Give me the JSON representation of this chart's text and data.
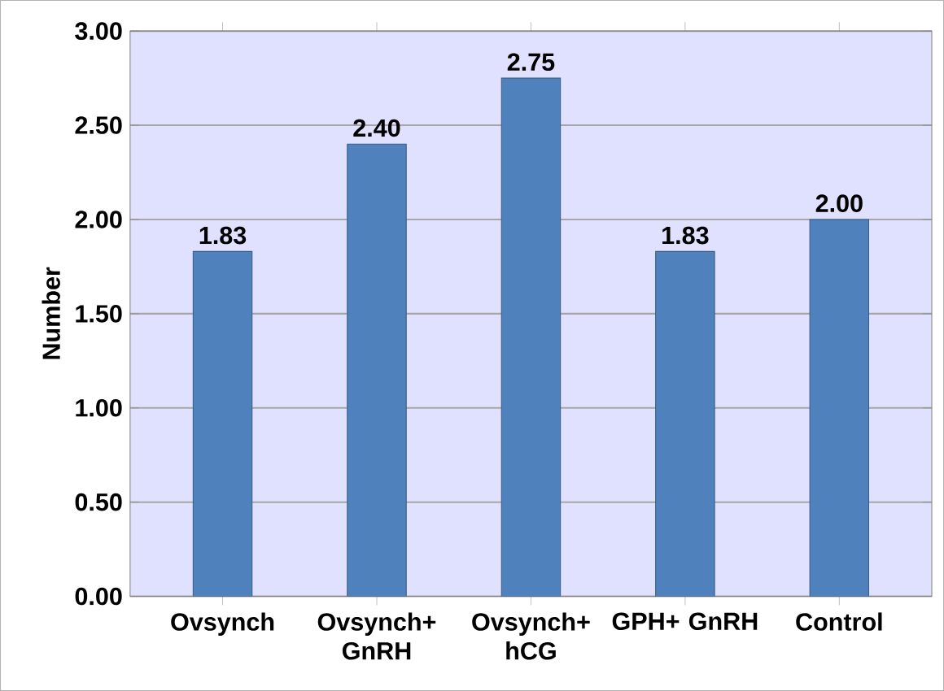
{
  "chart_data": {
    "type": "bar",
    "ylabel": "Number",
    "categories": [
      "Ovsynch",
      "Ovsynch+ GnRH",
      "Ovsynch+ hCG",
      "GPH+ GnRH",
      "Control"
    ],
    "values": [
      1.83,
      2.4,
      2.75,
      1.83,
      2.0
    ],
    "color": "#4f81bd",
    "ylim": [
      0,
      3
    ],
    "yticks": [
      {
        "value": 0,
        "label": "0.00"
      },
      {
        "value": 0.5,
        "label": "0.50"
      },
      {
        "value": 1,
        "label": "1.00"
      },
      {
        "value": 1.5,
        "label": "1.50"
      },
      {
        "value": 2,
        "label": "2.00"
      },
      {
        "value": 2.5,
        "label": "2.50"
      },
      {
        "value": 3,
        "label": "3.00"
      }
    ],
    "value_labels": [
      "1.83",
      "2.40",
      "2.75",
      "1.83",
      "2.00"
    ],
    "grid": "y"
  }
}
